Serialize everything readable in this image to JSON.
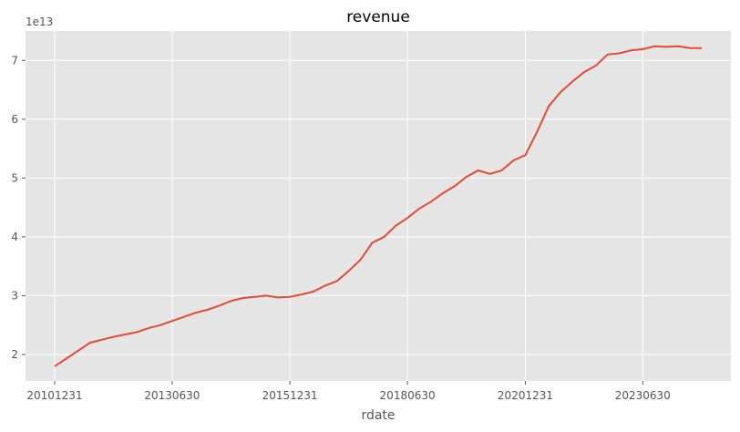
{
  "chart_data": {
    "type": "line",
    "title": "revenue",
    "xlabel": "rdate",
    "ylabel": "",
    "y_offset_label": "1e13",
    "grid": true,
    "legend": "none",
    "x_tick_labels": [
      "20101231",
      "20130630",
      "20151231",
      "20180630",
      "20201231",
      "20230630"
    ],
    "y_tick_labels": [
      "2",
      "3",
      "4",
      "5",
      "6",
      "7"
    ],
    "ylim": [
      1.55,
      7.5
    ],
    "colors": {
      "background": "#e5e5e5",
      "grid": "#ffffff",
      "line": "#e24a33"
    },
    "series": [
      {
        "x": [
          "20101231",
          "20110331",
          "20110630",
          "20110930",
          "20111231",
          "20120331",
          "20120630",
          "20120930",
          "20121231",
          "20130331",
          "20130630",
          "20130930",
          "20131231",
          "20140331",
          "20140630",
          "20140930",
          "20141231",
          "20150331",
          "20150630",
          "20150930",
          "20151231",
          "20160331",
          "20160630",
          "20160930",
          "20161231",
          "20170331",
          "20170630",
          "20170930",
          "20171231",
          "20180331",
          "20180630",
          "20180930",
          "20181231",
          "20190331",
          "20190630",
          "20190930",
          "20191231",
          "20200331",
          "20200630",
          "20200930",
          "20201231",
          "20210331",
          "20210630",
          "20210930",
          "20211231",
          "20220331",
          "20220630",
          "20220930",
          "20221231",
          "20230331",
          "20230630",
          "20230930",
          "20231231",
          "20240331",
          "20240630",
          "20240930"
        ],
        "values": [
          1.8,
          1.93,
          2.06,
          2.2,
          2.25,
          2.3,
          2.34,
          2.38,
          2.45,
          2.5,
          2.57,
          2.64,
          2.71,
          2.76,
          2.83,
          2.91,
          2.96,
          2.98,
          3.0,
          2.97,
          2.98,
          3.02,
          3.07,
          3.17,
          3.25,
          3.42,
          3.61,
          3.9,
          4.0,
          4.19,
          4.32,
          4.48,
          4.6,
          4.74,
          4.86,
          5.02,
          5.13,
          5.07,
          5.13,
          5.3,
          5.39,
          5.78,
          6.22,
          6.46,
          6.64,
          6.8,
          6.91,
          7.1,
          7.12,
          7.17,
          7.19,
          7.24,
          7.23,
          7.24,
          7.21,
          7.21
        ]
      }
    ]
  }
}
